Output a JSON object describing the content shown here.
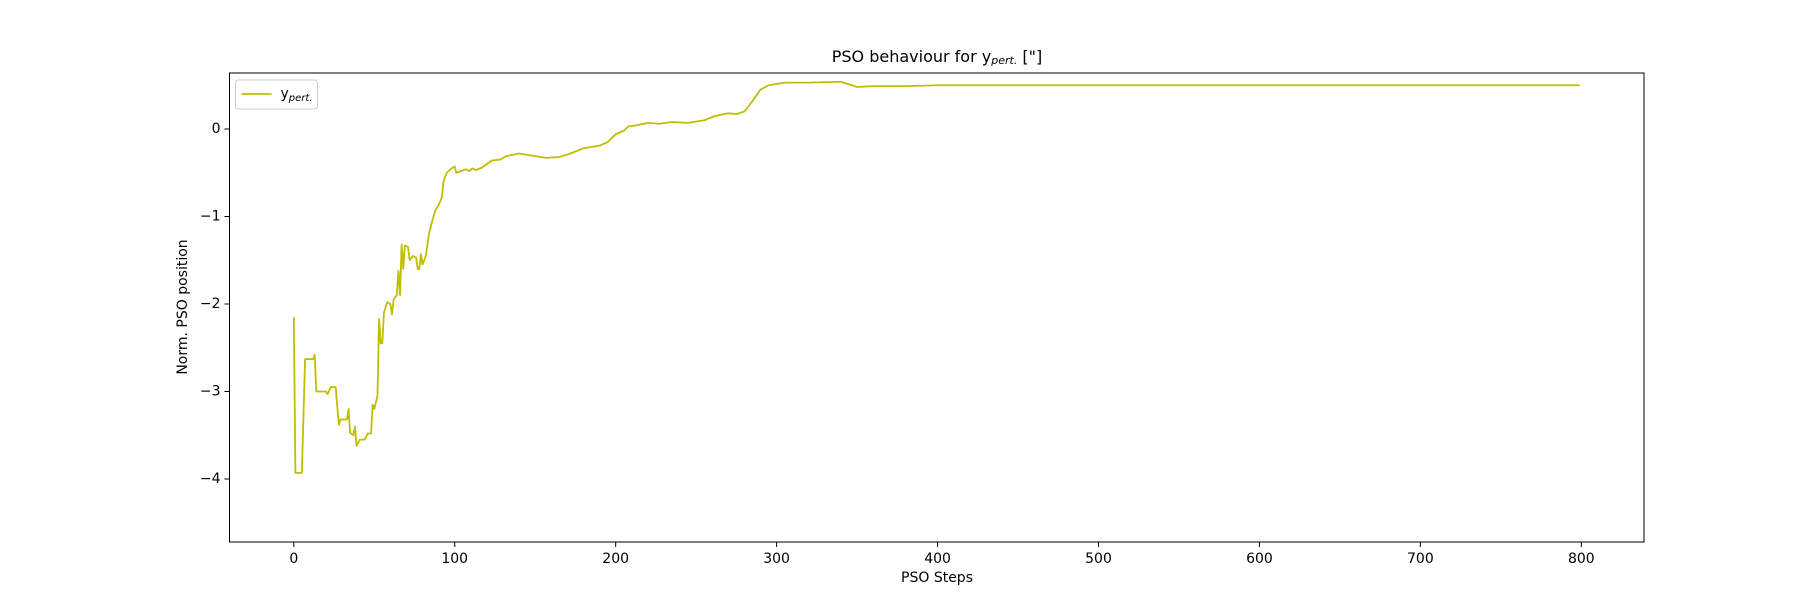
{
  "chart_data": {
    "type": "line",
    "title": "PSO behaviour for y",
    "title_subscript": "pert.",
    "title_suffix": " [\"]",
    "x_label": "PSO Steps",
    "y_label": "Norm. PSO position",
    "xlim": [
      -39.95,
      838.95
    ],
    "ylim": [
      -4.72,
      0.64
    ],
    "xticks": [
      0,
      100,
      200,
      300,
      400,
      500,
      600,
      700,
      800
    ],
    "yticks": [
      {
        "value": -4,
        "label": "−4"
      },
      {
        "value": -3,
        "label": "−3"
      },
      {
        "value": -2,
        "label": "−2"
      },
      {
        "value": -1,
        "label": "−1"
      },
      0
    ],
    "legend": "upper left",
    "grid": false,
    "x": [
      0,
      1,
      5,
      7,
      12,
      13,
      14,
      20,
      21,
      23,
      26,
      28,
      29,
      33,
      34,
      35,
      37,
      38,
      39,
      41,
      44,
      46,
      48,
      49,
      50,
      52,
      53,
      54,
      55,
      56,
      58,
      60,
      61,
      62,
      64,
      65,
      66,
      67,
      68,
      69,
      71,
      72,
      74,
      76,
      77,
      78,
      79,
      80,
      82,
      84,
      86,
      88,
      90,
      92,
      93,
      95,
      98,
      100,
      101,
      104,
      107,
      109,
      111,
      113,
      117,
      120,
      123,
      128,
      132,
      140,
      150,
      157,
      165,
      172,
      180,
      190,
      195,
      200,
      205,
      208,
      212,
      220,
      227,
      235,
      245,
      255,
      262,
      270,
      275,
      280,
      285,
      290,
      295,
      305,
      320,
      340,
      350,
      360,
      380,
      400,
      500,
      600,
      700,
      799
    ],
    "series": [
      {
        "name": "y",
        "name_subscript": "pert.",
        "color": "#bfbf00",
        "values": [
          -2.15,
          -3.93,
          -3.93,
          -2.63,
          -2.63,
          -2.58,
          -3.0,
          -3.0,
          -3.03,
          -2.95,
          -2.95,
          -3.38,
          -3.32,
          -3.32,
          -3.2,
          -3.47,
          -3.5,
          -3.4,
          -3.62,
          -3.55,
          -3.55,
          -3.48,
          -3.48,
          -3.15,
          -3.2,
          -3.05,
          -2.17,
          -2.45,
          -2.45,
          -2.1,
          -1.98,
          -2.0,
          -2.12,
          -1.95,
          -1.9,
          -1.62,
          -1.9,
          -1.32,
          -1.6,
          -1.33,
          -1.35,
          -1.5,
          -1.45,
          -1.47,
          -1.6,
          -1.6,
          -1.43,
          -1.55,
          -1.45,
          -1.2,
          -1.05,
          -0.93,
          -0.87,
          -0.78,
          -0.6,
          -0.5,
          -0.45,
          -0.43,
          -0.5,
          -0.48,
          -0.46,
          -0.48,
          -0.45,
          -0.47,
          -0.44,
          -0.4,
          -0.36,
          -0.35,
          -0.31,
          -0.28,
          -0.31,
          -0.33,
          -0.32,
          -0.28,
          -0.22,
          -0.19,
          -0.15,
          -0.06,
          -0.02,
          0.03,
          0.04,
          0.07,
          0.06,
          0.08,
          0.07,
          0.1,
          0.15,
          0.18,
          0.17,
          0.2,
          0.32,
          0.45,
          0.5,
          0.53,
          0.53,
          0.54,
          0.48,
          0.49,
          0.49,
          0.5,
          0.5,
          0.5,
          0.5,
          0.5
        ]
      }
    ]
  }
}
